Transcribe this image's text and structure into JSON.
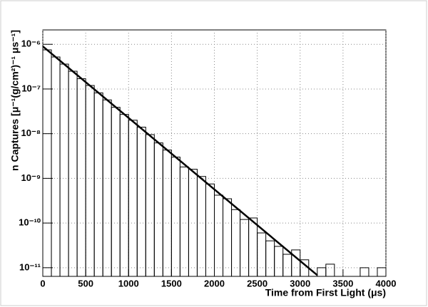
{
  "chart_data": {
    "type": "histogram",
    "x_label": "Time from First Light (μs)",
    "y_label": "n Captures [μ⁻¹(g/cm²)⁻¹ μs⁻¹]",
    "bins": [
      0,
      100,
      200,
      300,
      400,
      500,
      600,
      700,
      800,
      900,
      1000,
      1100,
      1200,
      1300,
      1400,
      1500,
      1600,
      1700,
      1800,
      1900,
      2000,
      2100,
      2200,
      2300,
      2400,
      2500,
      2600,
      2700,
      2800,
      2900,
      3000,
      3100,
      3200,
      3300,
      3400,
      3500,
      3600,
      3700,
      3800,
      3900,
      4000
    ],
    "values": [
      7.5e-07,
      5.2e-07,
      3.6e-07,
      2.5e-07,
      1.7e-07,
      1.2e-07,
      8.2e-08,
      5.7e-08,
      3.9e-08,
      2.7e-08,
      2e-08,
      1.4e-08,
      9.5e-09,
      6.2e-09,
      4.3e-09,
      3e-09,
      1.8e-09,
      1.6e-09,
      1.1e-09,
      7.5e-10,
      4.2e-10,
      3.5e-10,
      2e-10,
      1.2e-10,
      1.3e-10,
      6e-11,
      4e-11,
      3e-11,
      2e-11,
      2.5e-11,
      1.5e-11,
      0,
      1e-11,
      1.2e-11,
      0,
      0,
      0,
      1e-11,
      0,
      1e-11
    ],
    "fit": {
      "x": [
        0,
        3200
      ],
      "values": [
        9e-07,
        6.8e-12
      ]
    },
    "color": "#000000",
    "xlim": [
      0,
      4000
    ],
    "ylim": [
      6.4e-12,
      2.1e-06
    ],
    "xticks": [
      0,
      500,
      1000,
      1500,
      2000,
      2500,
      3000,
      3500,
      4000
    ],
    "yticks": [
      {
        "value": 1e-11,
        "label": "10⁻¹¹"
      },
      {
        "value": 1e-10,
        "label": "10⁻¹⁰"
      },
      {
        "value": 1e-09,
        "label": "10⁻⁹"
      },
      {
        "value": 1e-08,
        "label": "10⁻⁸"
      },
      {
        "value": 1e-07,
        "label": "10⁻⁷"
      },
      {
        "value": 1e-06,
        "label": "10⁻⁶"
      }
    ],
    "log_y": true,
    "grid": true
  }
}
